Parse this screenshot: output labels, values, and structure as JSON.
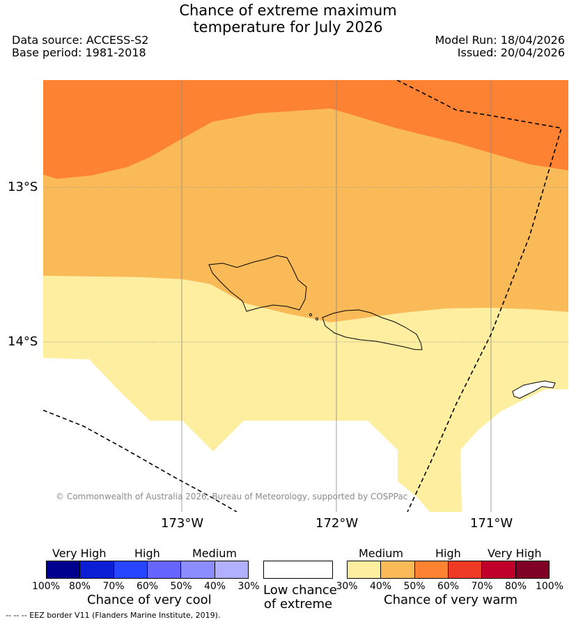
{
  "title": {
    "line1": "Chance of extreme maximum",
    "line2": "temperature for July 2026"
  },
  "meta": {
    "data_source": "Data source: ACCESS-S2",
    "base_period": "Base period: 1981-2018",
    "model_run": "Model Run: 18/04/2026",
    "issued": "Issued: 20/04/2026"
  },
  "map": {
    "lat_labels": [
      "13°S",
      "14°S"
    ],
    "lon_labels": [
      "173°W",
      "172°W",
      "171°W"
    ],
    "copyright": "© Commonwealth of Australia 2026, Bureau of Meteorology, supported by COSPPac",
    "zones": {
      "high_60_70": "#fd8232",
      "medium_50_60": "#fbba58",
      "medium_40_50": "#feee9f",
      "background": "#ffffff"
    }
  },
  "legend_cool": {
    "levels": [
      "Very High",
      "High",
      "Medium"
    ],
    "ticks": [
      "100%",
      "80%",
      "70%",
      "60%",
      "50%",
      "40%",
      "30%"
    ],
    "title": "Chance of very cool",
    "colors": [
      "#00008e",
      "#0b1ed3",
      "#2744ff",
      "#6666ff",
      "#8b8cff",
      "#b0b0ff"
    ]
  },
  "legend_low": {
    "line1": "Low chance",
    "line2": "of extreme",
    "color": "#ffffff"
  },
  "legend_warm": {
    "levels": [
      "Medium",
      "High",
      "Very High"
    ],
    "ticks": [
      "30%",
      "40%",
      "50%",
      "60%",
      "70%",
      "80%",
      "100%"
    ],
    "title": "Chance of very warm",
    "colors": [
      "#feee9f",
      "#fbba58",
      "#fd8232",
      "#ef3b26",
      "#c0002a",
      "#800026"
    ]
  },
  "footer": {
    "eez_note": "--  --  -- EEZ border V11 (Flanders Marine Institute, 2019)."
  }
}
